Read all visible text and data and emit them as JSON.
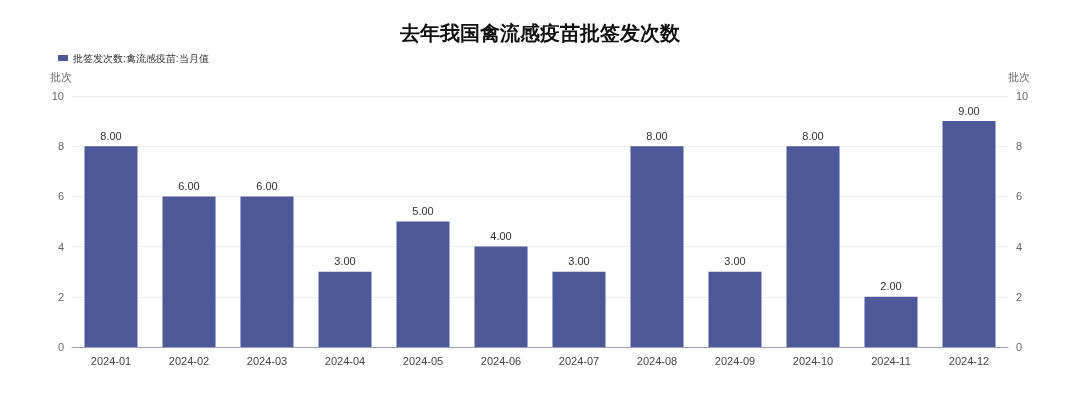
{
  "chart_data": {
    "type": "bar",
    "title": "去年我国禽流感疫苗批签发次数",
    "ylabel": "批次",
    "y2label": "批次",
    "categories": [
      "2024-01",
      "2024-02",
      "2024-03",
      "2024-04",
      "2024-05",
      "2024-06",
      "2024-07",
      "2024-08",
      "2024-09",
      "2024-10",
      "2024-11",
      "2024-12"
    ],
    "series": [
      {
        "name": "批签发次数:禽流感疫苗:当月值",
        "color": "#4f5899",
        "values": [
          8,
          6,
          6,
          3,
          5,
          4,
          3,
          8,
          3,
          8,
          2,
          9
        ],
        "value_labels": [
          "8.00",
          "6.00",
          "6.00",
          "3.00",
          "5.00",
          "4.00",
          "3.00",
          "8.00",
          "3.00",
          "8.00",
          "2.00",
          "9.00"
        ]
      }
    ],
    "ylim": [
      0,
      10
    ],
    "yticks": [
      0,
      2,
      4,
      6,
      8,
      10
    ],
    "y2lim": [
      0,
      10
    ],
    "y2ticks": [
      0,
      2,
      4,
      6,
      8,
      10
    ],
    "grid": "y",
    "legend": "top left"
  }
}
